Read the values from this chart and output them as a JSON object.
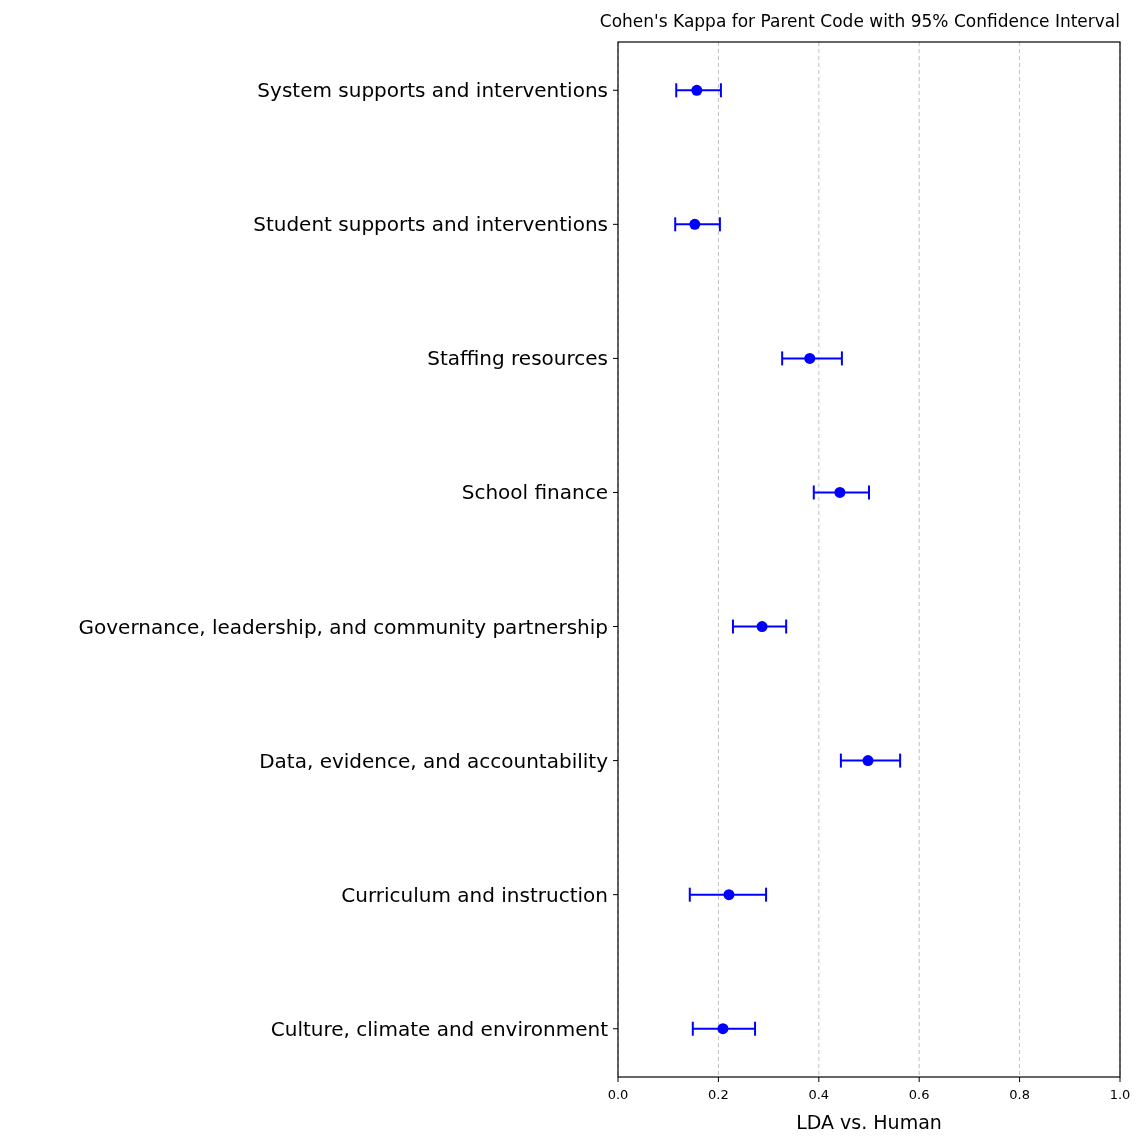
{
  "chart_data": {
    "type": "scatter",
    "title": "Cohen's Kappa for Parent Code with 95% Confidence Interval",
    "xlabel": "LDA vs. Human",
    "orientation": "horizontal",
    "categories": [
      "System supports and interventions",
      "Student supports and interventions",
      "Staffing resources",
      "School finance",
      "Governance, leadership, and community partnership",
      "Data, evidence, and accountability",
      "Curriculum and instruction",
      "Culture, climate and environment"
    ],
    "values": [
      0.157,
      0.153,
      0.382,
      0.442,
      0.287,
      0.498,
      0.221,
      0.209
    ],
    "errors": [
      [
        0.116,
        0.205
      ],
      [
        0.114,
        0.203
      ],
      [
        0.327,
        0.446
      ],
      [
        0.39,
        0.5
      ],
      [
        0.229,
        0.335
      ],
      [
        0.444,
        0.562
      ],
      [
        0.143,
        0.295
      ],
      [
        0.149,
        0.273
      ]
    ],
    "color": "#0000ff",
    "marker": "circle",
    "xlim": [
      0,
      1
    ],
    "xticks": [
      {
        "value": 0,
        "label": "0.0"
      },
      {
        "value": 0.2,
        "label": "0.2"
      },
      {
        "value": 0.4,
        "label": "0.4"
      },
      {
        "value": 0.6,
        "label": "0.6"
      },
      {
        "value": 0.8,
        "label": "0.8"
      },
      {
        "value": 1,
        "label": "1.0"
      }
    ],
    "grid": "x"
  }
}
